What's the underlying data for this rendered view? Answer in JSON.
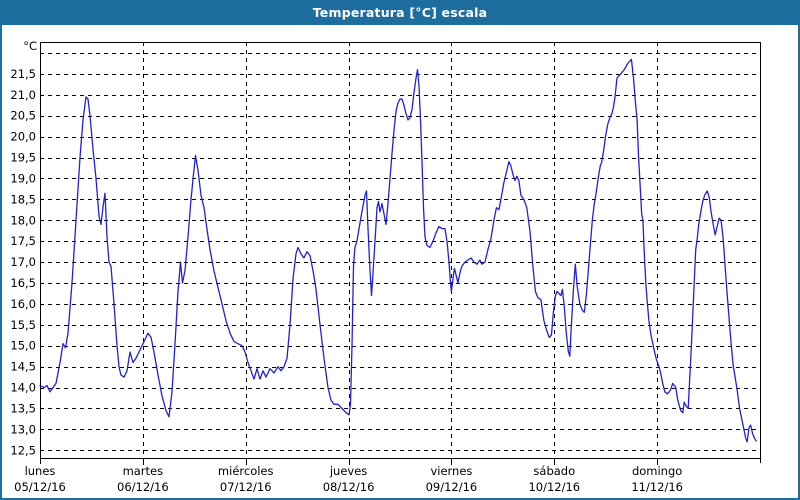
{
  "window": {
    "title": "Temperatura [°C] escala"
  },
  "colors": {
    "titlebar": "#1d6d9e",
    "window_border": "#1d6d9e",
    "line": "#2222cb",
    "grid": "#000000",
    "background": "#ffffff",
    "title_text": "#ffffff",
    "label_text": "#000000"
  },
  "chart_data": {
    "type": "line",
    "title": "Temperatura [°C] escala",
    "ylabel": "°C",
    "xlabel": "",
    "ylim": [
      12.5,
      22.0
    ],
    "y_tick_step": 0.5,
    "y_tick_labels": [
      "12,5",
      "13,0",
      "13,5",
      "14,0",
      "14,5",
      "15,0",
      "15,5",
      "16,0",
      "16,5",
      "17,0",
      "17,5",
      "18,0",
      "18,5",
      "19,0",
      "19,5",
      "20,0",
      "20,5",
      "21,0",
      "21,5"
    ],
    "grid": "dashed",
    "legend_position": "none",
    "x_categories": [
      {
        "name": "lunes",
        "date": "05/12/16"
      },
      {
        "name": "martes",
        "date": "06/12/16"
      },
      {
        "name": "miércoles",
        "date": "07/12/16"
      },
      {
        "name": "jueves",
        "date": "08/12/16"
      },
      {
        "name": "viernes",
        "date": "09/12/16"
      },
      {
        "name": "sábado",
        "date": "10/12/16"
      },
      {
        "name": "domingo",
        "date": "11/12/16"
      }
    ],
    "series": [
      {
        "name": "Temperatura [°C]",
        "x_unit": "days_since_2016-12-05",
        "points": [
          [
            0.0,
            14.05
          ],
          [
            0.039,
            14.0
          ],
          [
            0.068,
            14.05
          ],
          [
            0.097,
            13.9
          ],
          [
            0.126,
            14.0
          ],
          [
            0.156,
            14.1
          ],
          [
            0.194,
            14.6
          ],
          [
            0.224,
            15.05
          ],
          [
            0.248,
            14.95
          ],
          [
            0.272,
            15.3
          ],
          [
            0.311,
            16.5
          ],
          [
            0.35,
            18.0
          ],
          [
            0.389,
            19.5
          ],
          [
            0.418,
            20.4
          ],
          [
            0.447,
            20.95
          ],
          [
            0.467,
            20.9
          ],
          [
            0.486,
            20.5
          ],
          [
            0.515,
            19.7
          ],
          [
            0.544,
            19.0
          ],
          [
            0.574,
            18.1
          ],
          [
            0.593,
            17.9
          ],
          [
            0.612,
            18.3
          ],
          [
            0.632,
            18.65
          ],
          [
            0.651,
            17.6
          ],
          [
            0.671,
            17.0
          ],
          [
            0.69,
            16.9
          ],
          [
            0.719,
            16.0
          ],
          [
            0.749,
            15.0
          ],
          [
            0.768,
            14.5
          ],
          [
            0.787,
            14.3
          ],
          [
            0.817,
            14.25
          ],
          [
            0.846,
            14.4
          ],
          [
            0.875,
            14.85
          ],
          [
            0.904,
            14.6
          ],
          [
            0.933,
            14.7
          ],
          [
            0.972,
            14.9
          ],
          [
            1.011,
            15.1
          ],
          [
            1.05,
            15.3
          ],
          [
            1.079,
            15.2
          ],
          [
            1.108,
            14.85
          ],
          [
            1.147,
            14.3
          ],
          [
            1.186,
            13.8
          ],
          [
            1.225,
            13.45
          ],
          [
            1.254,
            13.3
          ],
          [
            1.283,
            13.9
          ],
          [
            1.312,
            15.0
          ],
          [
            1.342,
            16.3
          ],
          [
            1.366,
            17.0
          ],
          [
            1.385,
            16.5
          ],
          [
            1.41,
            16.8
          ],
          [
            1.439,
            17.6
          ],
          [
            1.468,
            18.5
          ],
          [
            1.492,
            19.1
          ],
          [
            1.512,
            19.55
          ],
          [
            1.536,
            19.2
          ],
          [
            1.565,
            18.6
          ],
          [
            1.594,
            18.3
          ],
          [
            1.623,
            17.8
          ],
          [
            1.653,
            17.3
          ],
          [
            1.691,
            16.8
          ],
          [
            1.73,
            16.4
          ],
          [
            1.769,
            16.0
          ],
          [
            1.808,
            15.6
          ],
          [
            1.847,
            15.3
          ],
          [
            1.886,
            15.1
          ],
          [
            1.925,
            15.05
          ],
          [
            1.964,
            15.0
          ],
          [
            1.993,
            14.85
          ],
          [
            2.022,
            14.6
          ],
          [
            2.051,
            14.4
          ],
          [
            2.081,
            14.2
          ],
          [
            2.11,
            14.45
          ],
          [
            2.139,
            14.2
          ],
          [
            2.168,
            14.4
          ],
          [
            2.197,
            14.25
          ],
          [
            2.236,
            14.45
          ],
          [
            2.275,
            14.35
          ],
          [
            2.314,
            14.5
          ],
          [
            2.343,
            14.4
          ],
          [
            2.372,
            14.5
          ],
          [
            2.401,
            14.7
          ],
          [
            2.431,
            15.5
          ],
          [
            2.46,
            16.6
          ],
          [
            2.489,
            17.2
          ],
          [
            2.508,
            17.35
          ],
          [
            2.537,
            17.2
          ],
          [
            2.566,
            17.1
          ],
          [
            2.596,
            17.25
          ],
          [
            2.625,
            17.15
          ],
          [
            2.654,
            16.8
          ],
          [
            2.683,
            16.35
          ],
          [
            2.722,
            15.5
          ],
          [
            2.761,
            14.7
          ],
          [
            2.8,
            14.0
          ],
          [
            2.829,
            13.7
          ],
          [
            2.858,
            13.6
          ],
          [
            2.897,
            13.6
          ],
          [
            2.936,
            13.5
          ],
          [
            2.975,
            13.4
          ],
          [
            3.004,
            13.35
          ],
          [
            3.019,
            13.6
          ],
          [
            3.033,
            15.0
          ],
          [
            3.048,
            16.9
          ],
          [
            3.062,
            17.35
          ],
          [
            3.082,
            17.5
          ],
          [
            3.101,
            17.8
          ],
          [
            3.13,
            18.2
          ],
          [
            3.16,
            18.6
          ],
          [
            3.174,
            18.7
          ],
          [
            3.189,
            17.8
          ],
          [
            3.208,
            16.8
          ],
          [
            3.223,
            16.2
          ],
          [
            3.237,
            16.7
          ],
          [
            3.257,
            17.5
          ],
          [
            3.276,
            18.3
          ],
          [
            3.291,
            18.45
          ],
          [
            3.305,
            18.2
          ],
          [
            3.325,
            18.4
          ],
          [
            3.344,
            18.15
          ],
          [
            3.364,
            17.9
          ],
          [
            3.383,
            18.4
          ],
          [
            3.403,
            19.0
          ],
          [
            3.422,
            19.6
          ],
          [
            3.442,
            20.15
          ],
          [
            3.461,
            20.6
          ],
          [
            3.48,
            20.8
          ],
          [
            3.5,
            20.9
          ],
          [
            3.519,
            20.9
          ],
          [
            3.539,
            20.75
          ],
          [
            3.558,
            20.55
          ],
          [
            3.578,
            20.4
          ],
          [
            3.597,
            20.45
          ],
          [
            3.617,
            20.65
          ],
          [
            3.636,
            21.05
          ],
          [
            3.656,
            21.4
          ],
          [
            3.67,
            21.6
          ],
          [
            3.685,
            21.2
          ],
          [
            3.699,
            20.4
          ],
          [
            3.714,
            19.4
          ],
          [
            3.728,
            18.3
          ],
          [
            3.743,
            17.6
          ],
          [
            3.762,
            17.4
          ],
          [
            3.791,
            17.35
          ],
          [
            3.821,
            17.5
          ],
          [
            3.85,
            17.7
          ],
          [
            3.879,
            17.85
          ],
          [
            3.908,
            17.8
          ],
          [
            3.937,
            17.8
          ],
          [
            3.957,
            17.5
          ],
          [
            3.976,
            17.0
          ],
          [
            3.991,
            16.5
          ],
          [
            4.0,
            16.3
          ],
          [
            4.015,
            16.6
          ],
          [
            4.029,
            16.85
          ],
          [
            4.044,
            16.7
          ],
          [
            4.063,
            16.5
          ],
          [
            4.083,
            16.75
          ],
          [
            4.102,
            16.9
          ],
          [
            4.131,
            17.0
          ],
          [
            4.16,
            17.05
          ],
          [
            4.19,
            17.1
          ],
          [
            4.219,
            17.0
          ],
          [
            4.248,
            16.95
          ],
          [
            4.277,
            17.05
          ],
          [
            4.296,
            16.95
          ],
          [
            4.326,
            17.0
          ],
          [
            4.355,
            17.3
          ],
          [
            4.384,
            17.55
          ],
          [
            4.413,
            18.0
          ],
          [
            4.437,
            18.3
          ],
          [
            4.462,
            18.25
          ],
          [
            4.481,
            18.5
          ],
          [
            4.51,
            18.9
          ],
          [
            4.539,
            19.2
          ],
          [
            4.559,
            19.4
          ],
          [
            4.578,
            19.3
          ],
          [
            4.598,
            19.1
          ],
          [
            4.617,
            18.95
          ],
          [
            4.636,
            19.05
          ],
          [
            4.656,
            18.95
          ],
          [
            4.675,
            18.6
          ],
          [
            4.704,
            18.5
          ],
          [
            4.733,
            18.3
          ],
          [
            4.763,
            17.75
          ],
          [
            4.792,
            16.9
          ],
          [
            4.816,
            16.3
          ],
          [
            4.841,
            16.15
          ],
          [
            4.87,
            16.1
          ],
          [
            4.899,
            15.6
          ],
          [
            4.928,
            15.35
          ],
          [
            4.952,
            15.2
          ],
          [
            4.972,
            15.25
          ],
          [
            4.991,
            15.8
          ],
          [
            5.011,
            16.2
          ],
          [
            5.026,
            16.3
          ],
          [
            5.045,
            16.25
          ],
          [
            5.064,
            16.2
          ],
          [
            5.079,
            16.35
          ],
          [
            5.098,
            15.9
          ],
          [
            5.117,
            15.3
          ],
          [
            5.137,
            14.85
          ],
          [
            5.151,
            14.75
          ],
          [
            5.166,
            15.5
          ],
          [
            5.185,
            16.3
          ],
          [
            5.204,
            16.95
          ],
          [
            5.224,
            16.4
          ],
          [
            5.248,
            16.0
          ],
          [
            5.272,
            15.85
          ],
          [
            5.292,
            15.8
          ],
          [
            5.311,
            16.2
          ],
          [
            5.331,
            16.8
          ],
          [
            5.35,
            17.4
          ],
          [
            5.37,
            18.0
          ],
          [
            5.389,
            18.4
          ],
          [
            5.404,
            18.6
          ],
          [
            5.418,
            18.85
          ],
          [
            5.433,
            19.1
          ],
          [
            5.447,
            19.3
          ],
          [
            5.462,
            19.4
          ],
          [
            5.481,
            19.7
          ],
          [
            5.501,
            20.05
          ],
          [
            5.52,
            20.3
          ],
          [
            5.54,
            20.45
          ],
          [
            5.56,
            20.55
          ],
          [
            5.575,
            20.7
          ],
          [
            5.59,
            20.95
          ],
          [
            5.61,
            21.4
          ],
          [
            5.625,
            21.45
          ],
          [
            5.645,
            21.5
          ],
          [
            5.68,
            21.6
          ],
          [
            5.715,
            21.75
          ],
          [
            5.75,
            21.85
          ],
          [
            5.77,
            21.4
          ],
          [
            5.79,
            20.8
          ],
          [
            5.805,
            20.4
          ],
          [
            5.82,
            19.5
          ],
          [
            5.835,
            18.8
          ],
          [
            5.85,
            18.15
          ],
          [
            5.862,
            18.0
          ],
          [
            5.877,
            17.1
          ],
          [
            5.89,
            16.5
          ],
          [
            5.905,
            16.0
          ],
          [
            5.92,
            15.6
          ],
          [
            5.94,
            15.25
          ],
          [
            5.958,
            15.05
          ],
          [
            5.975,
            14.85
          ],
          [
            5.99,
            14.7
          ],
          [
            6.01,
            14.55
          ],
          [
            6.03,
            14.4
          ],
          [
            6.054,
            14.1
          ],
          [
            6.074,
            13.9
          ],
          [
            6.103,
            13.85
          ],
          [
            6.132,
            13.95
          ],
          [
            6.151,
            14.1
          ],
          [
            6.181,
            14.0
          ],
          [
            6.2,
            13.7
          ],
          [
            6.229,
            13.45
          ],
          [
            6.249,
            13.4
          ],
          [
            6.263,
            13.65
          ],
          [
            6.283,
            13.55
          ],
          [
            6.302,
            13.5
          ],
          [
            6.317,
            14.2
          ],
          [
            6.331,
            14.9
          ],
          [
            6.346,
            15.7
          ],
          [
            6.36,
            16.5
          ],
          [
            6.375,
            17.3
          ],
          [
            6.389,
            17.55
          ],
          [
            6.404,
            17.9
          ],
          [
            6.424,
            18.2
          ],
          [
            6.443,
            18.45
          ],
          [
            6.462,
            18.6
          ],
          [
            6.487,
            18.7
          ],
          [
            6.506,
            18.55
          ],
          [
            6.525,
            18.2
          ],
          [
            6.545,
            17.9
          ],
          [
            6.564,
            17.65
          ],
          [
            6.583,
            17.85
          ],
          [
            6.603,
            18.05
          ],
          [
            6.622,
            18.0
          ],
          [
            6.642,
            17.55
          ],
          [
            6.661,
            16.9
          ],
          [
            6.68,
            16.25
          ],
          [
            6.7,
            15.65
          ],
          [
            6.719,
            15.05
          ],
          [
            6.738,
            14.55
          ],
          [
            6.758,
            14.25
          ],
          [
            6.777,
            13.95
          ],
          [
            6.802,
            13.5
          ],
          [
            6.831,
            13.15
          ],
          [
            6.86,
            12.8
          ],
          [
            6.875,
            12.7
          ],
          [
            6.894,
            13.05
          ],
          [
            6.909,
            13.1
          ],
          [
            6.928,
            12.9
          ],
          [
            6.948,
            12.78
          ],
          [
            6.962,
            12.72
          ]
        ]
      }
    ]
  }
}
